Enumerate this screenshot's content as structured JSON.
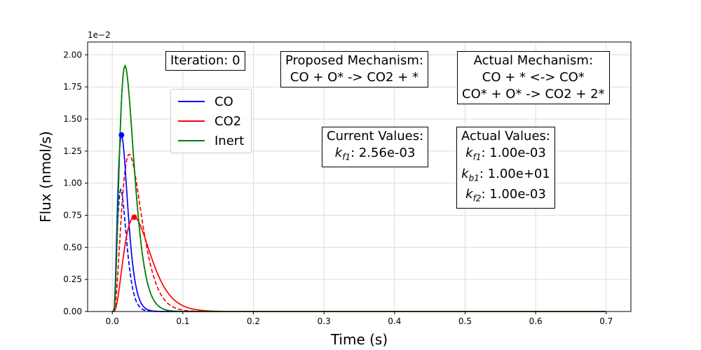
{
  "chart_data": {
    "type": "line",
    "xlabel": "Time (s)",
    "ylabel": "Flux (nmol/s)",
    "y_exponent_label": "1e−2",
    "xlim": [
      -0.035,
      0.735
    ],
    "ylim": [
      0,
      2.1
    ],
    "x_ticks": [
      "0.0",
      "0.1",
      "0.2",
      "0.3",
      "0.4",
      "0.5",
      "0.6",
      "0.7"
    ],
    "x_tick_values": [
      0.0,
      0.1,
      0.2,
      0.3,
      0.4,
      0.5,
      0.6,
      0.7
    ],
    "y_ticks": [
      "0.00",
      "0.25",
      "0.50",
      "0.75",
      "1.00",
      "1.25",
      "1.50",
      "1.75",
      "2.00"
    ],
    "y_tick_values": [
      0.0,
      0.25,
      0.5,
      0.75,
      1.0,
      1.25,
      1.5,
      1.75,
      2.0
    ],
    "grid": true,
    "legend_position": "upper-left",
    "series": [
      {
        "name": "CO",
        "color": "#0000ff",
        "style": "solid",
        "peak_x": 0.013,
        "peak_y": 1.375,
        "marker": true
      },
      {
        "name": "CO2",
        "color": "#ff0000",
        "style": "solid",
        "peak_x": 0.031,
        "peak_y": 0.735,
        "marker": true
      },
      {
        "name": "Inert",
        "color": "#008000",
        "style": "solid",
        "peak_x": 0.018,
        "peak_y": 1.915,
        "marker": false
      },
      {
        "color": "#0000ff",
        "style": "dashed",
        "peak_x": 0.012,
        "peak_y": 0.95,
        "marker": false
      },
      {
        "color": "#ff0000",
        "style": "dashed",
        "peak_x": 0.024,
        "peak_y": 1.225,
        "marker": false
      },
      {
        "color": "#008000",
        "style": "dashed",
        "peak_x": 0.018,
        "peak_y": 1.915,
        "marker": false
      }
    ]
  },
  "annotations": {
    "iteration": "Iteration: 0",
    "proposed_title": "Proposed Mechanism:",
    "proposed_line1": "CO + O* -> CO2 + *",
    "actual_title": "Actual Mechanism:",
    "actual_line1": "CO + * <-> CO*",
    "actual_line2": "CO* + O* -> CO2 + 2*",
    "current_title": "Current Values:",
    "current_kf1_label": "k",
    "current_kf1_sub": "f1",
    "current_kf1_value": ": 2.56e-03",
    "actual_values_title": "Actual Values:",
    "actual_kf1_label": "k",
    "actual_kf1_sub": "f1",
    "actual_kf1_value": ": 1.00e-03",
    "actual_kb1_label": "k",
    "actual_kb1_sub": "b1",
    "actual_kb1_value": ": 1.00e+01",
    "actual_kf2_label": "k",
    "actual_kf2_sub": "f2",
    "actual_kf2_value": ": 1.00e-03"
  }
}
